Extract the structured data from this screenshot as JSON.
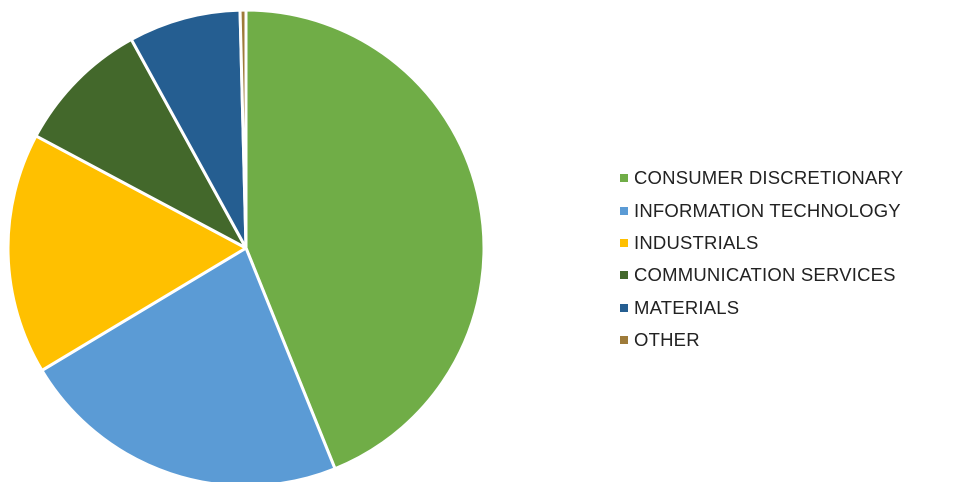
{
  "chart_data": {
    "type": "pie",
    "slices": [
      {
        "label": "CONSUMER DISCRETIONARY",
        "value": 43.9,
        "color": "#70AD47"
      },
      {
        "label": "INFORMATION TECHNOLOGY",
        "value": 22.5,
        "color": "#5B9BD5"
      },
      {
        "label": "INDUSTRIALS",
        "value": 16.4,
        "color": "#FFC000"
      },
      {
        "label": "COMMUNICATION SERVICES",
        "value": 9.2,
        "color": "#43682B"
      },
      {
        "label": "MATERIALS",
        "value": 7.6,
        "color": "#255E91"
      },
      {
        "label": "OTHER",
        "value": 0.4,
        "color": "#9E7B3A"
      }
    ],
    "legend_position": "right",
    "start_angle_deg": 0,
    "direction": "clockwise"
  }
}
